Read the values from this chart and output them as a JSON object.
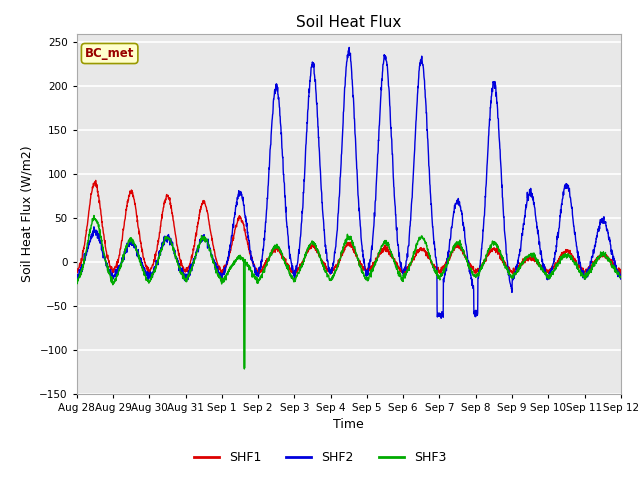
{
  "title": "Soil Heat Flux",
  "ylabel": "Soil Heat Flux (W/m2)",
  "xlabel": "Time",
  "ylim": [
    -150,
    260
  ],
  "yticks": [
    -150,
    -100,
    -50,
    0,
    50,
    100,
    150,
    200,
    250
  ],
  "plot_bg_color": "#e8e8e8",
  "fig_bg_color": "#ffffff",
  "grid_color": "#ffffff",
  "line_colors": {
    "SHF1": "#dd0000",
    "SHF2": "#0000dd",
    "SHF3": "#00aa00"
  },
  "legend_label": "BC_met",
  "legend_box_color": "#ffffcc",
  "legend_box_edge": "#999900",
  "num_days": 15,
  "xtick_labels": [
    "Aug 28",
    "Aug 29",
    "Aug 30",
    "Aug 31",
    "Sep 1",
    "Sep 2",
    "Sep 3",
    "Sep 4",
    "Sep 5",
    "Sep 6",
    "Sep 7",
    "Sep 8",
    "Sep 9",
    "Sep 10",
    "Sep 11",
    "Sep 12"
  ]
}
